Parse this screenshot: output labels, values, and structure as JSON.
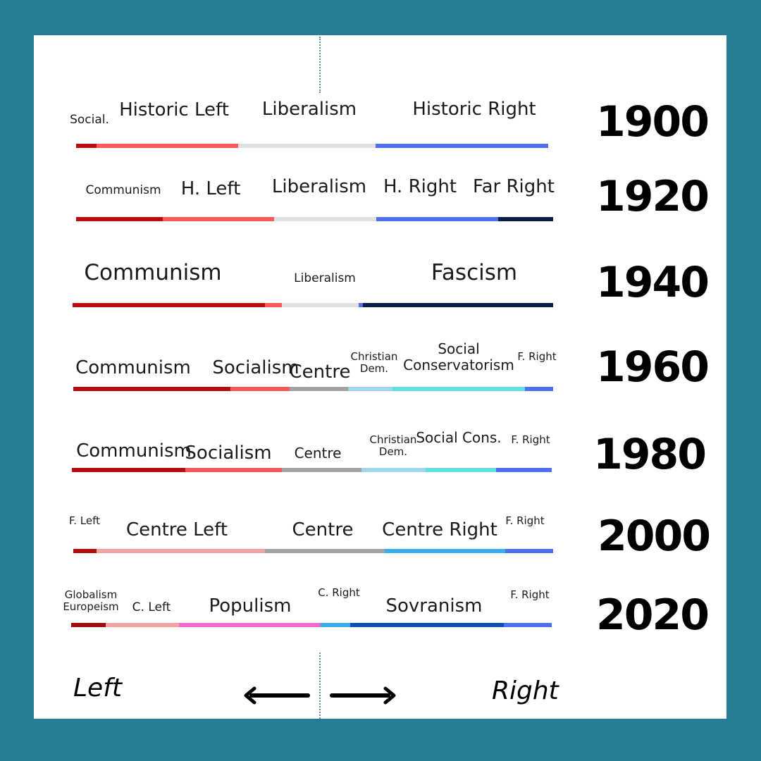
{
  "years": [
    {
      "year": "1900",
      "labels": [
        {
          "text": "Social.",
          "size": "sm"
        },
        {
          "text": "Historic Left",
          "size": "lg"
        },
        {
          "text": "Liberalism",
          "size": "lg"
        },
        {
          "text": "Historic Right",
          "size": "lg"
        }
      ],
      "segments": [
        {
          "color": "#b50c0c"
        },
        {
          "color": "#f65a5a"
        },
        {
          "color": "#e1e1e1"
        },
        {
          "color": "#4d6ff0"
        }
      ]
    },
    {
      "year": "1920",
      "labels": [
        {
          "text": "Communism",
          "size": "sm"
        },
        {
          "text": "H. Left",
          "size": "lg"
        },
        {
          "text": "Liberalism",
          "size": "lg"
        },
        {
          "text": "H. Right",
          "size": "lg"
        },
        {
          "text": "Far Right",
          "size": "lg"
        }
      ],
      "segments": [
        {
          "color": "#b50c0c"
        },
        {
          "color": "#f65a5a"
        },
        {
          "color": "#e1e1e1"
        },
        {
          "color": "#4d6ff0"
        },
        {
          "color": "#0d1d45"
        }
      ]
    },
    {
      "year": "1940",
      "labels": [
        {
          "text": "Communism",
          "size": "xl"
        },
        {
          "text": "Liberalism",
          "size": "sm"
        },
        {
          "text": "Fascism",
          "size": "xl"
        }
      ],
      "segments": [
        {
          "color": "#b50c0c"
        },
        {
          "color": "#f65a5a"
        },
        {
          "color": "#e1e1e1"
        },
        {
          "color": "#4d6ff0"
        },
        {
          "color": "#0d1d45"
        }
      ]
    },
    {
      "year": "1960",
      "labels": [
        {
          "text": "Communism",
          "size": "lg"
        },
        {
          "text": "Socialism",
          "size": "lg"
        },
        {
          "text": "Centre",
          "size": "lg"
        },
        {
          "text": "Christian Dem.",
          "size": "xs"
        },
        {
          "text": "Social Conservatorism",
          "size": "md"
        },
        {
          "text": "F. Right",
          "size": "xs"
        }
      ],
      "segments": [
        {
          "color": "#b50c0c"
        },
        {
          "color": "#f65a5a"
        },
        {
          "color": "#a3a3a3"
        },
        {
          "color": "#9fd8ee"
        },
        {
          "color": "#5ee0e4"
        },
        {
          "color": "#4d6ff0"
        }
      ]
    },
    {
      "year": "1980",
      "labels": [
        {
          "text": "Communism",
          "size": "lg"
        },
        {
          "text": "Socialism",
          "size": "lg"
        },
        {
          "text": "Centre",
          "size": "md"
        },
        {
          "text": "Christian Dem.",
          "size": "xs"
        },
        {
          "text": "Social Cons.",
          "size": "md"
        },
        {
          "text": "F. Right",
          "size": "xs"
        }
      ],
      "segments": [
        {
          "color": "#b50c0c"
        },
        {
          "color": "#f65a5a"
        },
        {
          "color": "#a3a3a3"
        },
        {
          "color": "#9fd8ee"
        },
        {
          "color": "#5ee0e4"
        },
        {
          "color": "#4d6ff0"
        }
      ]
    },
    {
      "year": "2000",
      "labels": [
        {
          "text": "F. Left",
          "size": "xs"
        },
        {
          "text": "Centre Left",
          "size": "lg"
        },
        {
          "text": "Centre",
          "size": "lg"
        },
        {
          "text": "Centre Right",
          "size": "lg"
        },
        {
          "text": "F. Right",
          "size": "xs"
        }
      ],
      "segments": [
        {
          "color": "#b50c0c"
        },
        {
          "color": "#f4a3a3"
        },
        {
          "color": "#a3a3a3"
        },
        {
          "color": "#38aef0"
        },
        {
          "color": "#4d6ff0"
        }
      ]
    },
    {
      "year": "2020",
      "labels": [
        {
          "text": "Globalism Europeism",
          "size": "xs"
        },
        {
          "text": "C. Left",
          "size": "sm"
        },
        {
          "text": "Populism",
          "size": "lg"
        },
        {
          "text": "C. Right",
          "size": "xs"
        },
        {
          "text": "Sovranism",
          "size": "lg"
        },
        {
          "text": "F. Right",
          "size": "xs"
        }
      ],
      "segments": [
        {
          "color": "#9b0c0c"
        },
        {
          "color": "#f4a3a3"
        },
        {
          "color": "#f26acd"
        },
        {
          "color": "#38aef0"
        },
        {
          "color": "#0b4fb0"
        },
        {
          "color": "#4d6ff0"
        }
      ]
    }
  ],
  "axis": {
    "left": "Left",
    "right": "Right"
  }
}
